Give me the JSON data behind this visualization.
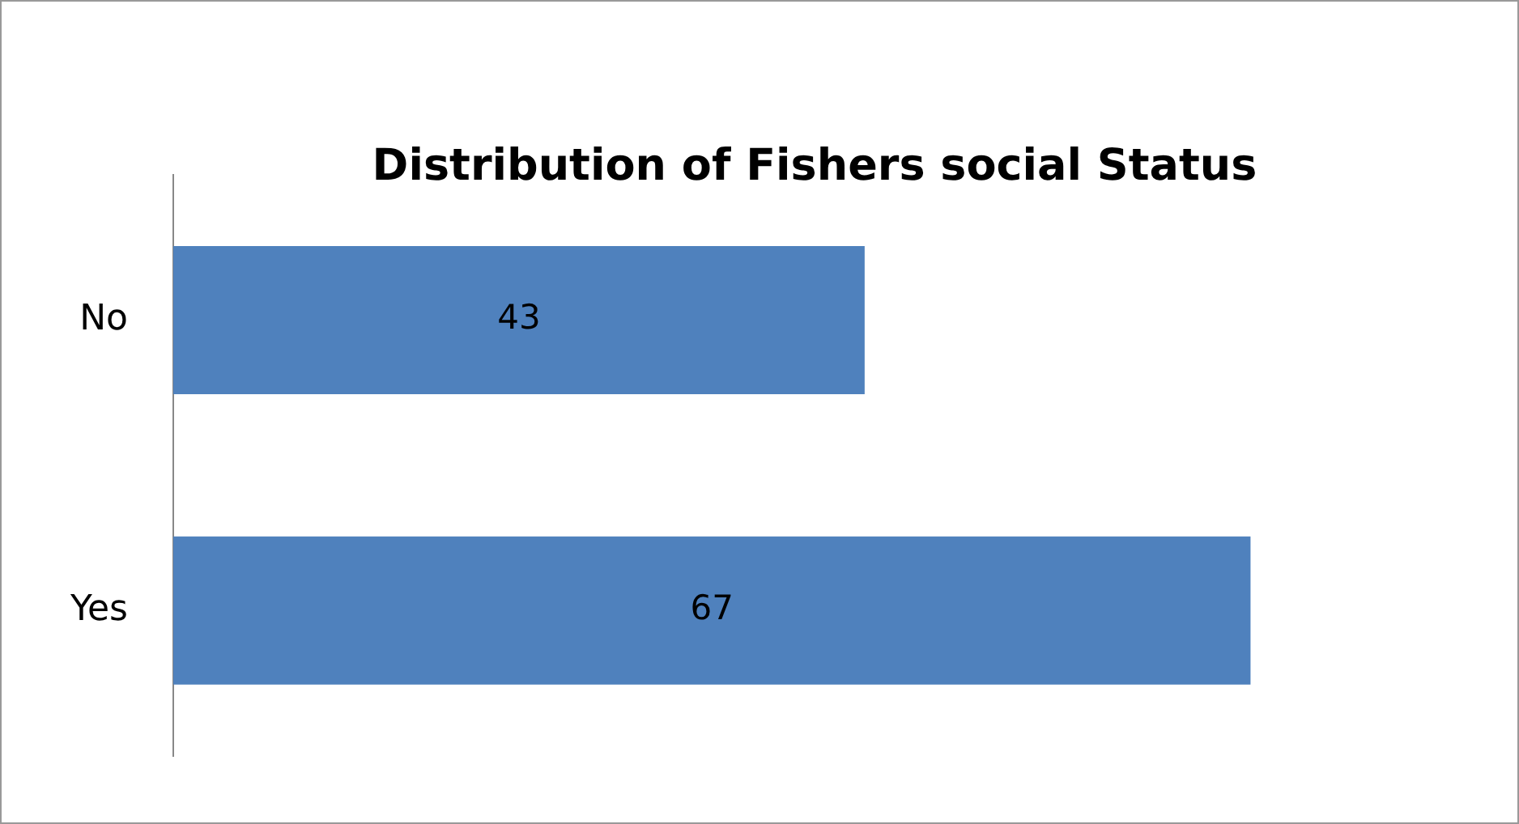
{
  "chart_data": {
    "type": "bar",
    "orientation": "horizontal",
    "title": "Distribution of Fishers social Status",
    "categories": [
      "No",
      "Yes"
    ],
    "values": [
      43,
      67
    ],
    "color": "#4f81bd",
    "data_labels": true,
    "grid": false,
    "legend": false
  }
}
